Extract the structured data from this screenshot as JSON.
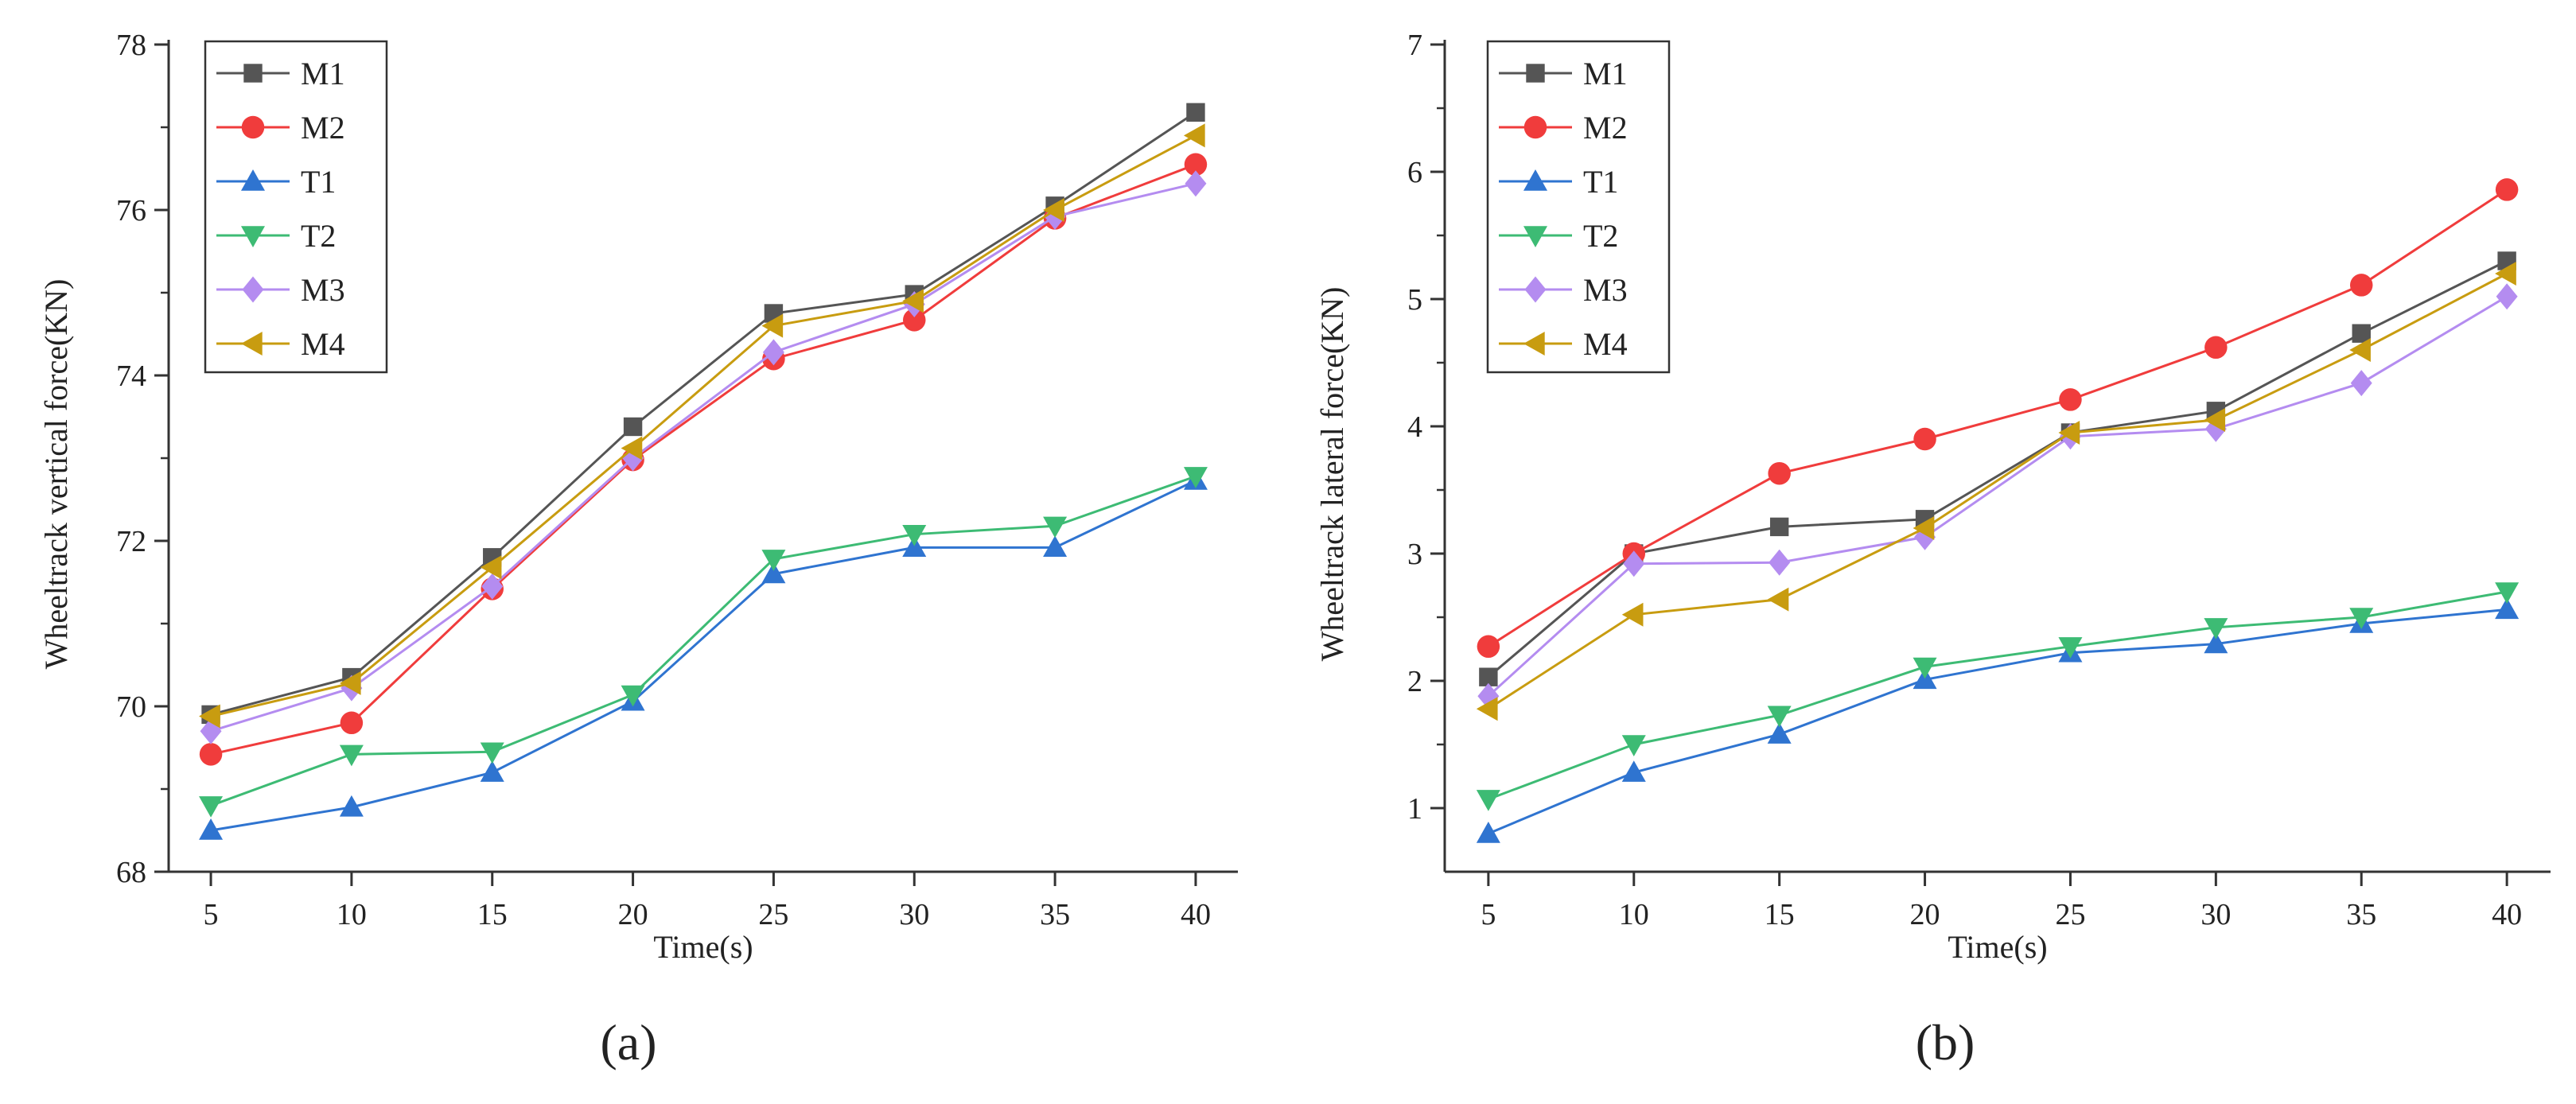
{
  "panel_captions": [
    "(a)",
    "(b)"
  ],
  "chart_data": [
    {
      "type": "line",
      "caption": "(a)",
      "xlabel": "Time(s)",
      "ylabel": "Wheeltrack vertical force(KN)",
      "x": [
        5,
        10,
        15,
        20,
        25,
        30,
        35,
        40
      ],
      "xlim": [
        3.5,
        41.5
      ],
      "ylim": [
        68,
        78
      ],
      "xticks": [
        5,
        10,
        15,
        20,
        25,
        30,
        35,
        40
      ],
      "yticks": [
        68,
        70,
        72,
        74,
        76,
        78
      ],
      "grid": false,
      "legend_position": "top-left",
      "series": [
        {
          "name": "M1",
          "color": "#555555",
          "marker": "square",
          "values": [
            69.9,
            70.35,
            71.8,
            73.38,
            74.75,
            74.98,
            76.05,
            77.18
          ]
        },
        {
          "name": "M2",
          "color": "#f03c3c",
          "marker": "circle",
          "values": [
            69.42,
            69.8,
            71.42,
            72.98,
            74.2,
            74.67,
            75.9,
            76.55
          ]
        },
        {
          "name": "T1",
          "color": "#2f74d0",
          "marker": "triangle-up",
          "values": [
            68.5,
            68.78,
            69.2,
            70.06,
            71.6,
            71.92,
            71.92,
            72.73
          ]
        },
        {
          "name": "T2",
          "color": "#3dbb74",
          "marker": "triangle-down",
          "values": [
            68.8,
            69.42,
            69.45,
            70.14,
            71.78,
            72.08,
            72.18,
            72.78
          ]
        },
        {
          "name": "M3",
          "color": "#b48cf0",
          "marker": "diamond",
          "values": [
            69.7,
            70.22,
            71.45,
            73.0,
            74.28,
            74.86,
            75.92,
            76.32
          ]
        },
        {
          "name": "M4",
          "color": "#c89c10",
          "marker": "triangle-left",
          "values": [
            69.88,
            70.28,
            71.68,
            73.12,
            74.6,
            74.9,
            76.0,
            76.9
          ]
        }
      ]
    },
    {
      "type": "line",
      "caption": "(b)",
      "xlabel": "Time(s)",
      "ylabel": "Wheeltrack lateral force(KN)",
      "x": [
        5,
        10,
        15,
        20,
        25,
        30,
        35,
        40
      ],
      "xlim": [
        3.5,
        41.5
      ],
      "ylim": [
        0.5,
        7
      ],
      "xticks": [
        5,
        10,
        15,
        20,
        25,
        30,
        35,
        40
      ],
      "yticks": [
        1,
        2,
        3,
        4,
        5,
        6,
        7
      ],
      "grid": false,
      "legend_position": "top-left",
      "series": [
        {
          "name": "M1",
          "color": "#555555",
          "marker": "square",
          "values": [
            2.03,
            3.0,
            3.21,
            3.27,
            3.95,
            4.12,
            4.73,
            5.3
          ]
        },
        {
          "name": "M2",
          "color": "#f03c3c",
          "marker": "circle",
          "values": [
            2.27,
            3.0,
            3.63,
            3.9,
            4.21,
            4.62,
            5.11,
            5.86
          ]
        },
        {
          "name": "T1",
          "color": "#2f74d0",
          "marker": "triangle-up",
          "values": [
            0.8,
            1.28,
            1.58,
            2.01,
            2.22,
            2.29,
            2.45,
            2.56
          ]
        },
        {
          "name": "T2",
          "color": "#3dbb74",
          "marker": "triangle-down",
          "values": [
            1.07,
            1.5,
            1.73,
            2.11,
            2.27,
            2.42,
            2.5,
            2.7
          ]
        },
        {
          "name": "M3",
          "color": "#b48cf0",
          "marker": "diamond",
          "values": [
            1.88,
            2.92,
            2.93,
            3.13,
            3.92,
            3.98,
            4.34,
            5.02
          ]
        },
        {
          "name": "M4",
          "color": "#c89c10",
          "marker": "triangle-left",
          "values": [
            1.78,
            2.52,
            2.64,
            3.2,
            3.95,
            4.05,
            4.6,
            5.2
          ]
        }
      ]
    }
  ]
}
